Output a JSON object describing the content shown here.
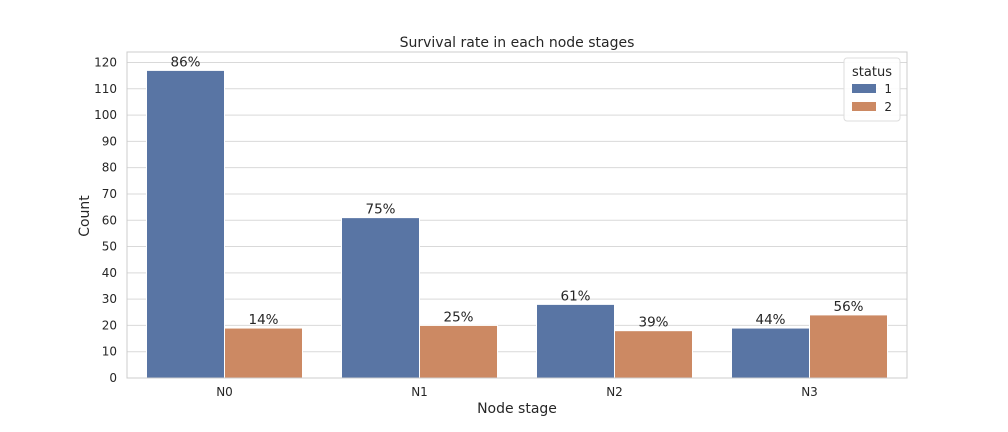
{
  "chart_data": {
    "type": "bar",
    "title": "Survival rate in each node stages",
    "xlabel": "Node stage",
    "ylabel": "Count",
    "ylim": [
      0,
      124
    ],
    "yticks": [
      0,
      10,
      20,
      30,
      40,
      50,
      60,
      70,
      80,
      90,
      100,
      110,
      120
    ],
    "categories": [
      "N0",
      "N1",
      "N2",
      "N3"
    ],
    "grid": true,
    "legend": {
      "title": "status",
      "placement": "top-right"
    },
    "series": [
      {
        "name": "1",
        "color": "#5975a4",
        "values": [
          117,
          61,
          28,
          19
        ],
        "labels": [
          "86%",
          "75%",
          "61%",
          "44%"
        ]
      },
      {
        "name": "2",
        "color": "#cc8963",
        "values": [
          19,
          20,
          18,
          24
        ],
        "labels": [
          "14%",
          "25%",
          "39%",
          "56%"
        ]
      }
    ]
  }
}
